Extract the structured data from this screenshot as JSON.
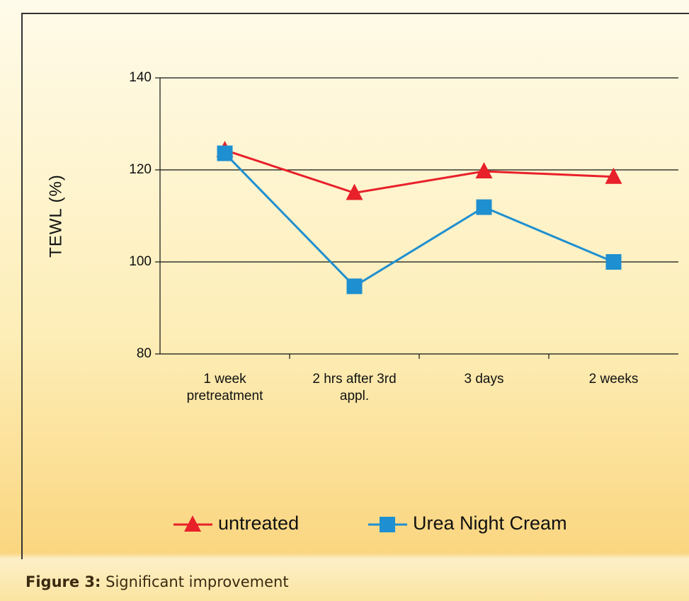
{
  "chart_data": {
    "type": "line",
    "ylabel": "TEWL (%)",
    "categories": [
      "1 week pretreatment",
      "2 hrs after 3rd appl.",
      "3 days",
      "2 weeks"
    ],
    "series": [
      {
        "name": "untreated",
        "color": "#e8202a",
        "marker": "triangle",
        "values": [
          124.3,
          115,
          119.7,
          118.5
        ]
      },
      {
        "name": "Urea Night Cream",
        "color": "#1e8fd0",
        "marker": "square",
        "values": [
          123.6,
          94.7,
          111.9,
          100
        ]
      }
    ],
    "ylim": [
      80,
      140
    ],
    "yticks": [
      80,
      100,
      120,
      140
    ],
    "grid": true
  },
  "figure": {
    "label": "Figure 3:",
    "text": "Significant improvement"
  }
}
